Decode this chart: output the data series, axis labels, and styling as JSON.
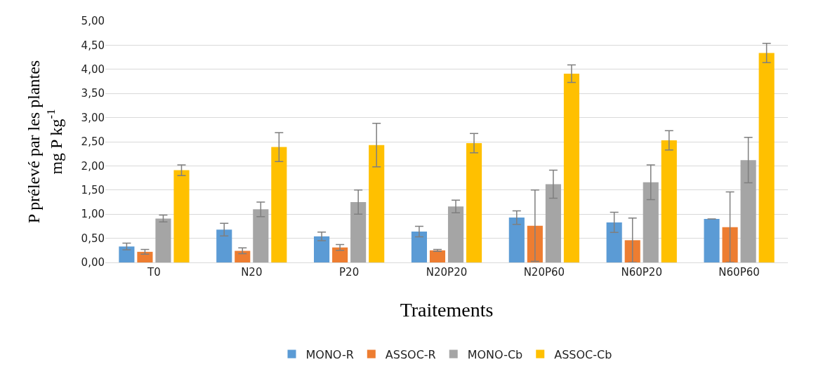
{
  "chart_data": {
    "type": "bar",
    "xlabel": "Traitements",
    "ylabel": "P prélevé par les plantes\nmg P kg$^{-1}$",
    "categories": [
      "T0",
      "N20",
      "P20",
      "N20P20",
      "N20P60",
      "N60P20",
      "N60P60"
    ],
    "series": [
      {
        "name": "MONO-R",
        "color": "#5b9bd5",
        "values": [
          0.33,
          0.68,
          0.54,
          0.64,
          0.93,
          0.83,
          0.9
        ],
        "errors": [
          0.07,
          0.13,
          0.09,
          0.11,
          0.14,
          0.21,
          null
        ]
      },
      {
        "name": "ASSOC-R",
        "color": "#ed7d31",
        "values": [
          0.22,
          0.24,
          0.31,
          0.25,
          0.76,
          0.46,
          0.73
        ],
        "errors": [
          0.05,
          0.06,
          0.06,
          0.02,
          0.74,
          0.46,
          0.73
        ]
      },
      {
        "name": "MONO-Cb",
        "color": "#a5a5a5",
        "values": [
          0.91,
          1.1,
          1.25,
          1.16,
          1.62,
          1.66,
          2.12
        ],
        "errors": [
          0.07,
          0.15,
          0.25,
          0.13,
          0.29,
          0.36,
          0.47
        ]
      },
      {
        "name": "ASSOC-Cb",
        "color": "#ffc000",
        "values": [
          1.91,
          2.39,
          2.43,
          2.47,
          3.91,
          2.53,
          4.34
        ],
        "errors": [
          0.11,
          0.3,
          0.45,
          0.2,
          0.18,
          0.2,
          0.2
        ]
      }
    ],
    "ylim": [
      0,
      5
    ],
    "yticks": [
      {
        "value": 0,
        "label": "0,00"
      },
      {
        "value": 0.5,
        "label": "0,50"
      },
      {
        "value": 1,
        "label": "1,00"
      },
      {
        "value": 1.5,
        "label": "1,50"
      },
      {
        "value": 2,
        "label": "2,00"
      },
      {
        "value": 2.5,
        "label": "2,50"
      },
      {
        "value": 3,
        "label": "3,00"
      },
      {
        "value": 3.5,
        "label": "3,50"
      },
      {
        "value": 4,
        "label": "4,00"
      },
      {
        "value": 4.5,
        "label": "4,50"
      },
      {
        "value": 5,
        "label": "5,00"
      }
    ],
    "grid": "y",
    "legend": "bottom"
  }
}
